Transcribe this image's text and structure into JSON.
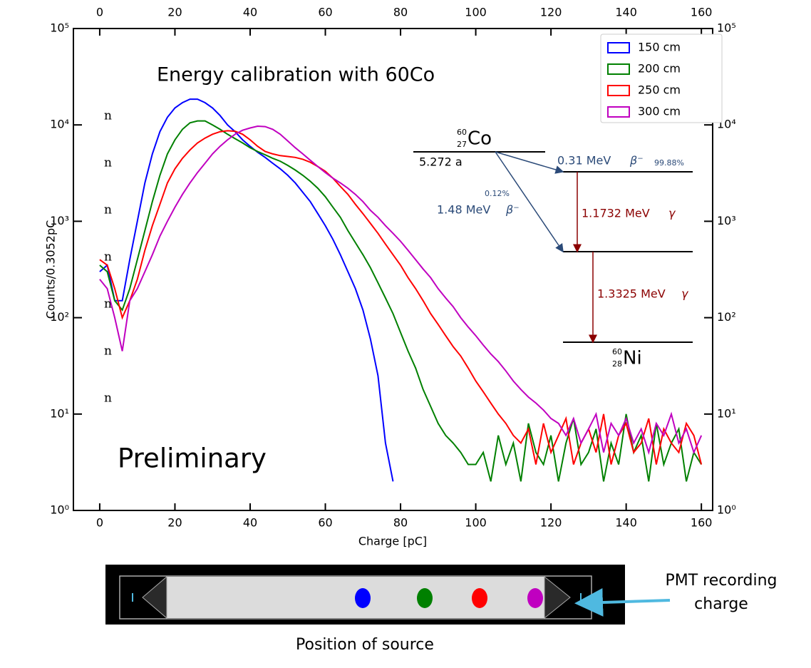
{
  "chart_data": {
    "type": "line",
    "title": "Energy calibration with 60Co",
    "watermark": "Preliminary",
    "xlabel": "Charge [pC]",
    "ylabel": "Counts/0.3052pC",
    "yscale": "log",
    "xlim": [
      -7,
      163
    ],
    "ylim": [
      1,
      100000
    ],
    "xticks": [
      0,
      20,
      40,
      60,
      80,
      100,
      120,
      140,
      160
    ],
    "yticks": [
      {
        "value": 1,
        "label": "10⁰"
      },
      {
        "value": 10,
        "label": "10¹"
      },
      {
        "value": 100,
        "label": "10²"
      },
      {
        "value": 1000,
        "label": "10³"
      },
      {
        "value": 10000,
        "label": "10⁴"
      },
      {
        "value": 100000,
        "label": "10⁵"
      }
    ],
    "legend": "upper right",
    "x": [
      0,
      2,
      4,
      6,
      8,
      10,
      12,
      14,
      16,
      18,
      20,
      22,
      24,
      26,
      28,
      30,
      32,
      34,
      36,
      38,
      40,
      42,
      44,
      46,
      48,
      50,
      52,
      54,
      56,
      58,
      60,
      62,
      64,
      66,
      68,
      70,
      72,
      74,
      76,
      78,
      80,
      82,
      84,
      86,
      88,
      90,
      92,
      94,
      96,
      98,
      100,
      102,
      104,
      106,
      108,
      110,
      112,
      114,
      116,
      118,
      120,
      122,
      124,
      126,
      128,
      130,
      132,
      134,
      136,
      138,
      140,
      142,
      144,
      146,
      148,
      150,
      152,
      154,
      156,
      158,
      160
    ],
    "series": [
      {
        "name": "150 cm",
        "color": "#0000ff",
        "values": [
          300,
          350,
          150,
          150,
          400,
          1000,
          2500,
          5000,
          8500,
          12000,
          15000,
          17000,
          18500,
          18500,
          17000,
          15000,
          12500,
          10000,
          8500,
          7000,
          6000,
          5200,
          4600,
          4000,
          3500,
          3000,
          2500,
          2000,
          1600,
          1200,
          900,
          650,
          450,
          300,
          200,
          120,
          60,
          25,
          5,
          2,
          null,
          null,
          null,
          null,
          null,
          null,
          null,
          null,
          null,
          null,
          null,
          null,
          null,
          null,
          null,
          null,
          null,
          null,
          null,
          null,
          null,
          null,
          null,
          null,
          null,
          null,
          null,
          null,
          null,
          null,
          null,
          null,
          null,
          null,
          null,
          null,
          null,
          null,
          null,
          null,
          null
        ]
      },
      {
        "name": "200 cm",
        "color": "#008000",
        "values": [
          350,
          300,
          150,
          120,
          200,
          400,
          800,
          1600,
          3000,
          5000,
          7000,
          9000,
          10500,
          11000,
          11000,
          10000,
          9000,
          8000,
          7200,
          6500,
          5800,
          5300,
          4900,
          4500,
          4200,
          3800,
          3400,
          3000,
          2600,
          2200,
          1800,
          1400,
          1100,
          800,
          600,
          450,
          330,
          230,
          160,
          110,
          70,
          45,
          30,
          18,
          12,
          8,
          6,
          5,
          4,
          3,
          3,
          4,
          2,
          6,
          3,
          5,
          2,
          8,
          4,
          3,
          6,
          2,
          5,
          9,
          3,
          4,
          7,
          2,
          5,
          3,
          10,
          4,
          6,
          2,
          8,
          3,
          5,
          7,
          2,
          4,
          3
        ]
      },
      {
        "name": "250 cm",
        "color": "#ff0000",
        "values": [
          400,
          350,
          200,
          100,
          150,
          250,
          500,
          900,
          1500,
          2500,
          3500,
          4500,
          5500,
          6500,
          7300,
          8000,
          8500,
          8700,
          8600,
          8000,
          7000,
          6000,
          5300,
          5000,
          4800,
          4700,
          4600,
          4400,
          4100,
          3700,
          3300,
          2800,
          2300,
          1900,
          1500,
          1200,
          950,
          750,
          580,
          450,
          350,
          260,
          200,
          150,
          110,
          85,
          65,
          50,
          40,
          30,
          22,
          17,
          13,
          10,
          8,
          6,
          5,
          7,
          3,
          8,
          4,
          6,
          9,
          3,
          5,
          7,
          4,
          10,
          3,
          6,
          8,
          4,
          5,
          9,
          3,
          7,
          5,
          4,
          8,
          6,
          3
        ]
      },
      {
        "name": "300 cm",
        "color": "#c000c0",
        "values": [
          250,
          200,
          100,
          45,
          150,
          200,
          300,
          450,
          700,
          1000,
          1400,
          1900,
          2500,
          3200,
          4000,
          5000,
          6000,
          7000,
          8000,
          8800,
          9300,
          9700,
          9600,
          9000,
          8000,
          6800,
          5800,
          5000,
          4300,
          3700,
          3200,
          2800,
          2500,
          2200,
          1900,
          1600,
          1300,
          1100,
          900,
          750,
          620,
          500,
          400,
          320,
          260,
          200,
          160,
          130,
          100,
          80,
          65,
          52,
          42,
          35,
          28,
          22,
          18,
          15,
          13,
          11,
          9,
          8,
          6,
          9,
          5,
          7,
          10,
          4,
          8,
          6,
          9,
          5,
          7,
          4,
          8,
          6,
          10,
          5,
          7,
          4,
          6
        ]
      }
    ],
    "decay_scheme": {
      "parent": {
        "mass": "60",
        "atomic": "27",
        "symbol": "Co"
      },
      "half_life": "5.272 a",
      "beta1": {
        "energy": "0.31 MeV",
        "symbol": "β⁻",
        "branch": "99.88%"
      },
      "beta2": {
        "energy": "1.48 MeV",
        "symbol": "β⁻",
        "branch": "0.12%"
      },
      "gamma1": {
        "energy": "1.1732 MeV",
        "symbol": "γ"
      },
      "gamma2": {
        "energy": "1.3325 MeV",
        "symbol": "γ"
      },
      "daughter": {
        "mass": "60",
        "atomic": "28",
        "symbol": "Ni"
      }
    }
  },
  "left_margin_fragments": [
    "n",
    "n",
    "n",
    "n",
    "n",
    "n",
    "n"
  ],
  "detector": {
    "caption": "Position of source",
    "pmt_label": [
      "PMT recording",
      "charge"
    ]
  }
}
